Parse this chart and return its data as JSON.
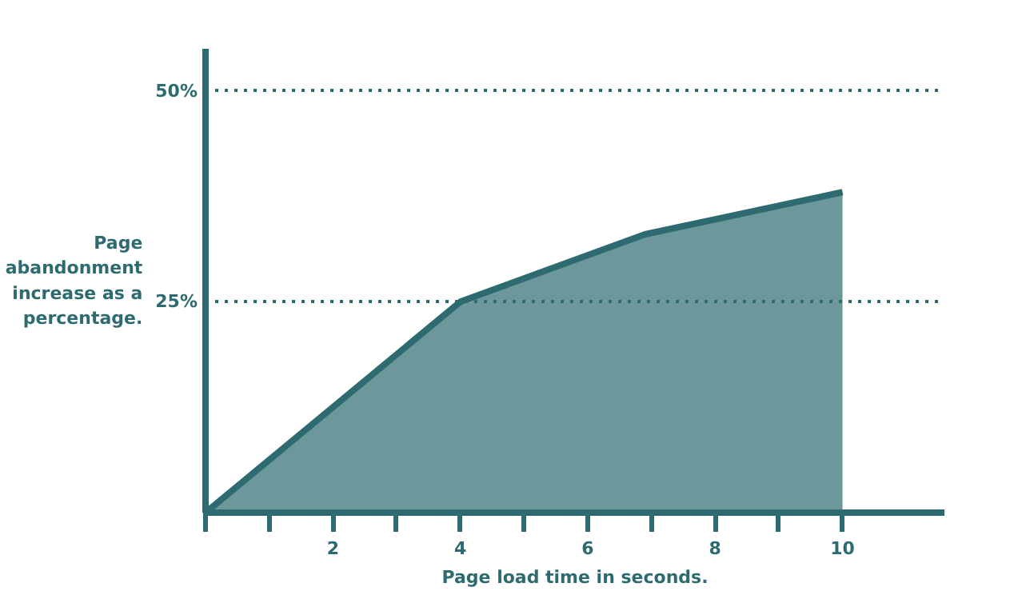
{
  "chart_data": {
    "type": "area",
    "xlabel": "Page load time in seconds.",
    "ylabel": "Page abandonment increase as a percentage.",
    "x": [
      0,
      4,
      6.9,
      10
    ],
    "series": [
      {
        "color": "#2e6b70",
        "values": [
          0,
          25,
          33,
          38
        ]
      }
    ],
    "xlim": [
      0,
      11.6
    ],
    "ylim": [
      0,
      55
    ],
    "xticks": [
      {
        "value": 0,
        "label": null
      },
      {
        "value": 1,
        "label": null
      },
      2,
      {
        "value": 3,
        "label": null
      },
      4,
      {
        "value": 5,
        "label": null
      },
      6,
      {
        "value": 7,
        "label": null
      },
      8,
      {
        "value": 9,
        "label": null
      },
      10
    ],
    "yticks": [
      {
        "value": 25,
        "label": "25%"
      },
      {
        "value": 50,
        "label": "50%"
      }
    ],
    "grid": "y"
  }
}
